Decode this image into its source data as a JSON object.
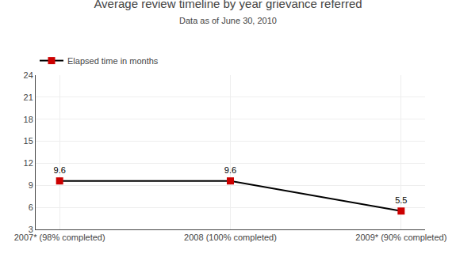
{
  "chart_data": {
    "type": "line",
    "title": "Average review timeline by year grievance referred",
    "subtitle": "Data as of June 30, 2010",
    "categories": [
      "2007* (98% completed)",
      "2008 (100% completed)",
      "2009* (90% completed)"
    ],
    "series": [
      {
        "name": "Elapsed time in months",
        "color": "#000000",
        "colors": [
          "#cc0000",
          "#cc0000",
          "#cc0000"
        ],
        "marker": "square",
        "values": [
          9.6,
          9.6,
          5.5
        ]
      }
    ],
    "ylim": [
      3,
      24
    ],
    "yticks": [
      3,
      6,
      9,
      12,
      15,
      18,
      21,
      24
    ],
    "grid": true,
    "legend": "upper left",
    "data_labels": true
  }
}
